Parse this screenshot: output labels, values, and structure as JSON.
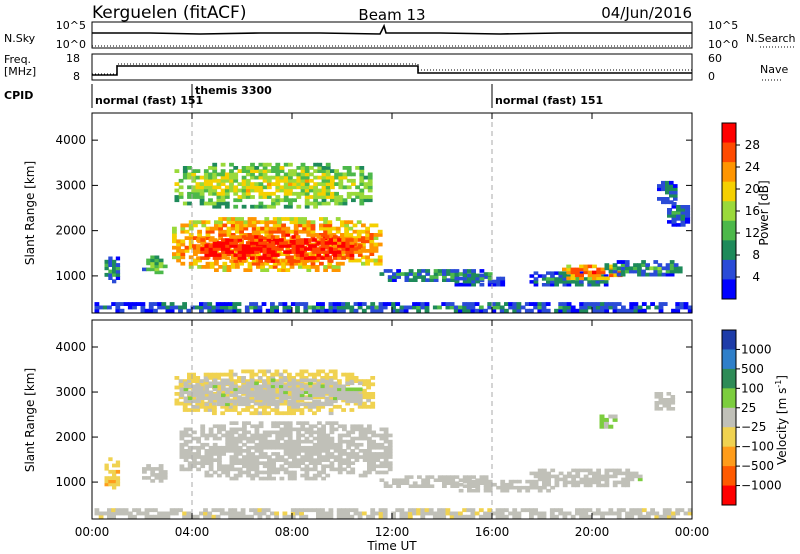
{
  "header": {
    "station": "Kerguelen (fitACF)",
    "beam": "Beam 13",
    "date": "04/Jun/2016"
  },
  "nsky_panel": {
    "left_label": "N.Sky",
    "left_ticks": [
      "10^5",
      "10^0"
    ],
    "right_ticks": [
      "10^5",
      "10^0"
    ],
    "right_label": "N.Search"
  },
  "freq_panel": {
    "left_label_1": "Freq.",
    "left_label_2": "[MHz]",
    "left_ticks": [
      "18",
      "8"
    ],
    "right_ticks": [
      "60",
      "0"
    ],
    "right_label": "Nave"
  },
  "cpid_panel": {
    "label": "CPID",
    "modes": [
      {
        "text": "normal (fast) 151",
        "start_hour": 0
      },
      {
        "text": "themis 3300",
        "start_hour": 3.9
      },
      {
        "text": "normal (fast) 151",
        "start_hour": 16
      }
    ]
  },
  "x_axis": {
    "ticks": [
      "00:00",
      "04:00",
      "08:00",
      "12:00",
      "16:00",
      "20:00",
      "00:00"
    ],
    "label": "Time UT"
  },
  "power_panel": {
    "ylabel": "Slant Range [km]",
    "yticks": [
      "1000",
      "2000",
      "3000",
      "4000"
    ],
    "colorbar_label": "Power [dB]",
    "colorbar_ticks": [
      "4",
      "8",
      "12",
      "16",
      "20",
      "24",
      "28"
    ],
    "colors": [
      "#0000ff",
      "#2a4bd7",
      "#1e8a5a",
      "#4cb84a",
      "#9ad93a",
      "#f5d000",
      "#ff9500",
      "#ff4a00",
      "#ff0000"
    ]
  },
  "velocity_panel": {
    "ylabel": "Slant Range [km]",
    "yticks": [
      "1000",
      "2000",
      "3000",
      "4000"
    ],
    "colorbar_label": "Velocity [m s",
    "colorbar_sup": "-1",
    "colorbar_label_end": "]",
    "colorbar_ticks": [
      "1000",
      "500",
      "100",
      "25",
      "−25",
      "−100",
      "−500",
      "−1000"
    ],
    "colors": [
      "#1e3ca8",
      "#2f7fc9",
      "#2e8b57",
      "#7ccd3e",
      "#c0c0b8",
      "#f0d250",
      "#ff9c1a",
      "#ff5a00",
      "#ff0000"
    ]
  },
  "chart_data": [
    {
      "type": "heatmap",
      "title": "Power [dB]",
      "xlabel": "Time UT",
      "ylabel": "Slant Range [km]",
      "x_range_hours": [
        0,
        24
      ],
      "ylim": [
        180,
        4600
      ],
      "value_range": [
        0,
        30
      ],
      "blobs": [
        {
          "t": [
            0.1,
            24
          ],
          "r": [
            200,
            420
          ],
          "v": 8
        },
        {
          "t": [
            0.5,
            1.1
          ],
          "r": [
            850,
            1500
          ],
          "v": 9
        },
        {
          "t": [
            2.0,
            3.0
          ],
          "r": [
            1050,
            1450
          ],
          "v": 13
        },
        {
          "t": [
            3.2,
            11.6
          ],
          "r": [
            1100,
            2300
          ],
          "v": 24
        },
        {
          "t": [
            4.0,
            10.8
          ],
          "r": [
            1300,
            1900
          ],
          "v": 29
        },
        {
          "t": [
            3.3,
            11.2
          ],
          "r": [
            2500,
            3500
          ],
          "v": 17
        },
        {
          "t": [
            11.5,
            16.0
          ],
          "r": [
            880,
            1150
          ],
          "v": 10
        },
        {
          "t": [
            14.5,
            16.5
          ],
          "r": [
            780,
            1050
          ],
          "v": 8
        },
        {
          "t": [
            17.5,
            20.8
          ],
          "r": [
            780,
            1100
          ],
          "v": 9
        },
        {
          "t": [
            18.8,
            21.2
          ],
          "r": [
            920,
            1250
          ],
          "v": 24
        },
        {
          "t": [
            20.5,
            23.6
          ],
          "r": [
            1000,
            1350
          ],
          "v": 10
        },
        {
          "t": [
            22.6,
            23.4
          ],
          "r": [
            2600,
            3100
          ],
          "v": 9
        },
        {
          "t": [
            23.0,
            23.9
          ],
          "r": [
            2100,
            2700
          ],
          "v": 8
        }
      ]
    },
    {
      "type": "heatmap",
      "title": "Velocity [m s-1]",
      "xlabel": "Time UT",
      "ylabel": "Slant Range [km]",
      "x_range_hours": [
        0,
        24
      ],
      "ylim": [
        180,
        4600
      ],
      "value_range": [
        -1000,
        1000
      ],
      "blobs": [
        {
          "t": [
            0.1,
            24
          ],
          "r": [
            200,
            420
          ],
          "v": -60
        },
        {
          "t": [
            0.5,
            1.1
          ],
          "r": [
            850,
            1550
          ],
          "v": -300
        },
        {
          "t": [
            2.0,
            3.0
          ],
          "r": [
            1000,
            1400
          ],
          "v": 0
        },
        {
          "t": [
            3.5,
            12.0
          ],
          "r": [
            1050,
            2350
          ],
          "v": 0
        },
        {
          "t": [
            3.3,
            11.3
          ],
          "r": [
            2500,
            3500
          ],
          "v": -150
        },
        {
          "t": [
            3.5,
            10.8
          ],
          "r": [
            2700,
            3300
          ],
          "v": 60
        },
        {
          "t": [
            11.5,
            16.0
          ],
          "r": [
            880,
            1150
          ],
          "v": 0
        },
        {
          "t": [
            14.5,
            18.5
          ],
          "r": [
            780,
            1050
          ],
          "v": 40
        },
        {
          "t": [
            17.5,
            22.0
          ],
          "r": [
            900,
            1300
          ],
          "v": 60
        },
        {
          "t": [
            22.5,
            23.3
          ],
          "r": [
            2600,
            3000
          ],
          "v": 0
        },
        {
          "t": [
            20.3,
            21.0
          ],
          "r": [
            2200,
            2500
          ],
          "v": 100
        }
      ]
    }
  ]
}
